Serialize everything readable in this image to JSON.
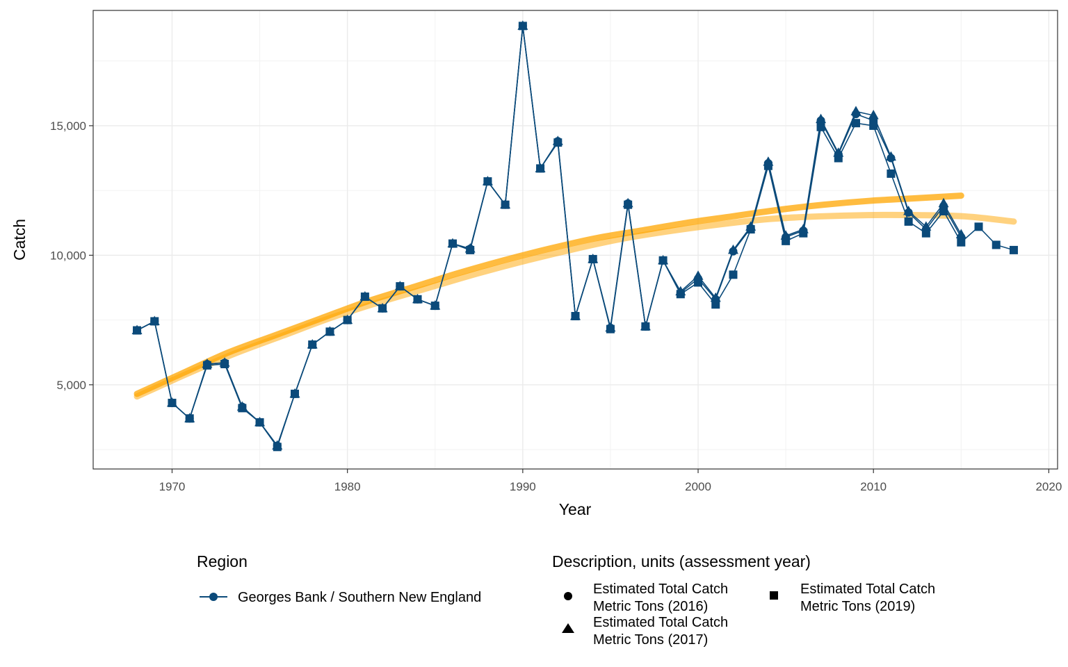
{
  "chart_data": {
    "type": "line",
    "title": "",
    "xlabel": "Year",
    "ylabel": "Catch",
    "xlim": [
      1965.5,
      2020.5
    ],
    "ylim": [
      1750,
      19450
    ],
    "x_ticks": [
      1970,
      1980,
      1990,
      2000,
      2010,
      2020
    ],
    "x_tick_labels": [
      "1970",
      "1980",
      "1990",
      "2000",
      "2010",
      "2020"
    ],
    "y_ticks": [
      5000,
      10000,
      15000
    ],
    "y_tick_labels": [
      "5,000",
      "10,000",
      "15,000"
    ],
    "grid": true,
    "region_series": {
      "name": "Georges Bank / Southern New England",
      "color": "#0b4a7a"
    },
    "series": [
      {
        "name": "Estimated Total Catch Metric Tons (2016)",
        "shape": "circle",
        "x": [
          1968,
          1969,
          1970,
          1971,
          1972,
          1973,
          1974,
          1975,
          1976,
          1977,
          1978,
          1979,
          1980,
          1981,
          1982,
          1983,
          1984,
          1985,
          1986,
          1987,
          1988,
          1989,
          1990,
          1991,
          1992,
          1993,
          1994,
          1995,
          1996,
          1997,
          1998,
          1999,
          2000,
          2001,
          2002,
          2003,
          2004,
          2005,
          2006,
          2007,
          2008,
          2009,
          2010,
          2011,
          2012,
          2013,
          2014,
          2015
        ],
        "values": [
          7100,
          7450,
          4300,
          3700,
          5800,
          5850,
          4150,
          3550,
          2650,
          4650,
          6550,
          7050,
          7500,
          8400,
          7950,
          8800,
          8300,
          8050,
          10450,
          10250,
          12850,
          11950,
          18850,
          13350,
          14400,
          7650,
          9850,
          7200,
          12000,
          7250,
          9800,
          8550,
          9100,
          8300,
          10150,
          11050,
          13550,
          10700,
          10950,
          15200,
          13900,
          15450,
          15200,
          13750,
          11650,
          11000,
          11900,
          10700
        ]
      },
      {
        "name": "Estimated Total Catch Metric Tons (2017)",
        "shape": "triangle",
        "x": [
          1968,
          1969,
          1970,
          1971,
          1972,
          1973,
          1974,
          1975,
          1976,
          1977,
          1978,
          1979,
          1980,
          1981,
          1982,
          1983,
          1984,
          1985,
          1986,
          1987,
          1988,
          1989,
          1990,
          1991,
          1992,
          1993,
          1994,
          1995,
          1996,
          1997,
          1998,
          1999,
          2000,
          2001,
          2002,
          2003,
          2004,
          2005,
          2006,
          2007,
          2008,
          2009,
          2010,
          2011,
          2012,
          2013,
          2014,
          2015
        ],
        "values": [
          7100,
          7450,
          4300,
          3700,
          5800,
          5850,
          4150,
          3550,
          2650,
          4650,
          6550,
          7050,
          7500,
          8400,
          7950,
          8800,
          8300,
          8050,
          10450,
          10250,
          12850,
          11950,
          18850,
          13350,
          14400,
          7650,
          9850,
          7200,
          12000,
          7250,
          9800,
          8600,
          9200,
          8350,
          10200,
          11100,
          13600,
          10750,
          11000,
          15250,
          13950,
          15550,
          15400,
          13800,
          11700,
          11100,
          12000,
          10800
        ]
      },
      {
        "name": "Estimated Total Catch Metric Tons (2019)",
        "shape": "square",
        "x": [
          1968,
          1969,
          1970,
          1971,
          1972,
          1973,
          1974,
          1975,
          1976,
          1977,
          1978,
          1979,
          1980,
          1981,
          1982,
          1983,
          1984,
          1985,
          1986,
          1987,
          1988,
          1989,
          1990,
          1991,
          1992,
          1993,
          1994,
          1995,
          1996,
          1997,
          1998,
          1999,
          2000,
          2001,
          2002,
          2003,
          2004,
          2005,
          2006,
          2007,
          2008,
          2009,
          2010,
          2011,
          2012,
          2013,
          2014,
          2015,
          2016,
          2017,
          2018
        ],
        "values": [
          7100,
          7450,
          4300,
          3700,
          5750,
          5800,
          4100,
          3550,
          2600,
          4650,
          6550,
          7050,
          7500,
          8400,
          7950,
          8800,
          8300,
          8050,
          10450,
          10200,
          12850,
          11950,
          18850,
          13350,
          14350,
          7650,
          9850,
          7150,
          11950,
          7250,
          9800,
          8500,
          8950,
          8100,
          9250,
          11000,
          13450,
          10550,
          10850,
          14950,
          13750,
          15100,
          15000,
          13150,
          11300,
          10850,
          11700,
          10500,
          11100,
          10400,
          10200
        ]
      }
    ],
    "trends": [
      {
        "x": [
          1968,
          2015
        ],
        "values": [
          4650,
          12300
        ],
        "curve": [
          4650,
          5450,
          6250,
          6900,
          7550,
          8200,
          8750,
          9300,
          9800,
          10250,
          10650,
          10950,
          11250,
          11500,
          11750,
          11950,
          12100,
          12200,
          12300
        ]
      },
      {
        "x": [
          1968,
          2018
        ],
        "values": [
          4550,
          11300
        ],
        "curve": [
          4550,
          5400,
          6200,
          6900,
          7600,
          8200,
          8750,
          9300,
          9800,
          10250,
          10650,
          10950,
          11200,
          11400,
          11500,
          11550,
          11550,
          11500,
          11300
        ]
      }
    ],
    "trend_color": "#ffa500",
    "legend_placement": "bottom",
    "legend": {
      "region_title": "Region",
      "region_label": "Georges Bank / Southern New England",
      "description_title": "Description, units (assessment year)",
      "items": [
        {
          "line1": "Estimated Total Catch",
          "line2": "Metric Tons (2016)",
          "shape": "circle"
        },
        {
          "line1": "Estimated Total Catch",
          "line2": "Metric Tons (2017)",
          "shape": "triangle"
        },
        {
          "line1": "Estimated Total Catch",
          "line2": "Metric Tons (2019)",
          "shape": "square"
        }
      ]
    }
  }
}
